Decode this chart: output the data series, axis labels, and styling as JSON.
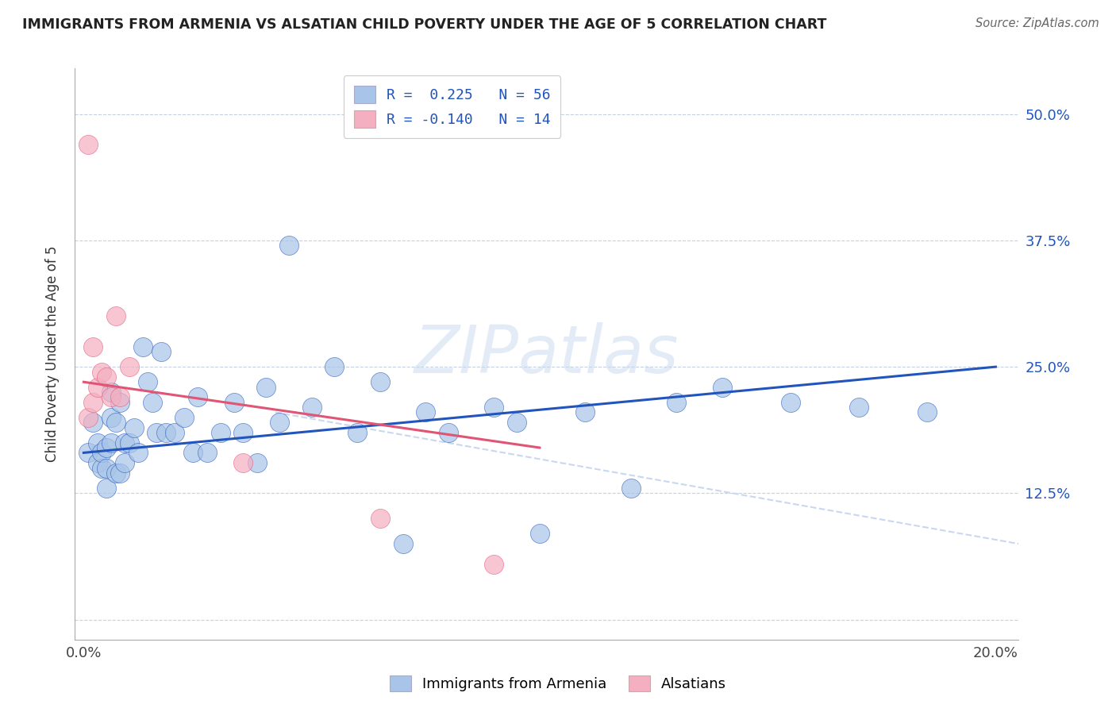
{
  "title": "IMMIGRANTS FROM ARMENIA VS ALSATIAN CHILD POVERTY UNDER THE AGE OF 5 CORRELATION CHART",
  "source": "Source: ZipAtlas.com",
  "ylabel": "Child Poverty Under the Age of 5",
  "x_ticks": [
    0.0,
    0.05,
    0.1,
    0.15,
    0.2
  ],
  "y_ticks": [
    0.0,
    0.125,
    0.25,
    0.375,
    0.5
  ],
  "y_tick_labels": [
    "",
    "12.5%",
    "25.0%",
    "37.5%",
    "50.0%"
  ],
  "xlim": [
    -0.002,
    0.205
  ],
  "ylim": [
    -0.02,
    0.545
  ],
  "watermark": "ZIPatlas",
  "blue_color": "#a8c4e8",
  "pink_color": "#f4afc0",
  "blue_line_color": "#2255bb",
  "pink_line_color": "#e05575",
  "dashed_line_color": "#c8d8f0",
  "blue_scatter_x": [
    0.001,
    0.002,
    0.003,
    0.003,
    0.004,
    0.004,
    0.005,
    0.005,
    0.005,
    0.006,
    0.006,
    0.006,
    0.007,
    0.007,
    0.008,
    0.008,
    0.009,
    0.009,
    0.01,
    0.011,
    0.012,
    0.013,
    0.014,
    0.015,
    0.016,
    0.017,
    0.018,
    0.02,
    0.022,
    0.024,
    0.025,
    0.027,
    0.03,
    0.033,
    0.035,
    0.038,
    0.04,
    0.043,
    0.045,
    0.05,
    0.055,
    0.06,
    0.065,
    0.07,
    0.075,
    0.08,
    0.09,
    0.095,
    0.1,
    0.11,
    0.12,
    0.13,
    0.14,
    0.155,
    0.17,
    0.185
  ],
  "blue_scatter_y": [
    0.165,
    0.195,
    0.155,
    0.175,
    0.15,
    0.165,
    0.13,
    0.15,
    0.17,
    0.175,
    0.2,
    0.225,
    0.145,
    0.195,
    0.145,
    0.215,
    0.155,
    0.175,
    0.175,
    0.19,
    0.165,
    0.27,
    0.235,
    0.215,
    0.185,
    0.265,
    0.185,
    0.185,
    0.2,
    0.165,
    0.22,
    0.165,
    0.185,
    0.215,
    0.185,
    0.155,
    0.23,
    0.195,
    0.37,
    0.21,
    0.25,
    0.185,
    0.235,
    0.075,
    0.205,
    0.185,
    0.21,
    0.195,
    0.085,
    0.205,
    0.13,
    0.215,
    0.23,
    0.215,
    0.21,
    0.205
  ],
  "pink_scatter_x": [
    0.001,
    0.001,
    0.002,
    0.002,
    0.003,
    0.004,
    0.005,
    0.006,
    0.007,
    0.008,
    0.01,
    0.035,
    0.065,
    0.09
  ],
  "pink_scatter_y": [
    0.2,
    0.47,
    0.215,
    0.27,
    0.23,
    0.245,
    0.24,
    0.22,
    0.3,
    0.22,
    0.25,
    0.155,
    0.1,
    0.055
  ],
  "blue_line_x": [
    0.0,
    0.2
  ],
  "blue_line_y": [
    0.165,
    0.25
  ],
  "pink_line_x": [
    0.0,
    0.1
  ],
  "pink_line_y": [
    0.235,
    0.17
  ],
  "dashed_line_x": [
    0.042,
    0.205
  ],
  "dashed_line_y": [
    0.205,
    0.075
  ]
}
